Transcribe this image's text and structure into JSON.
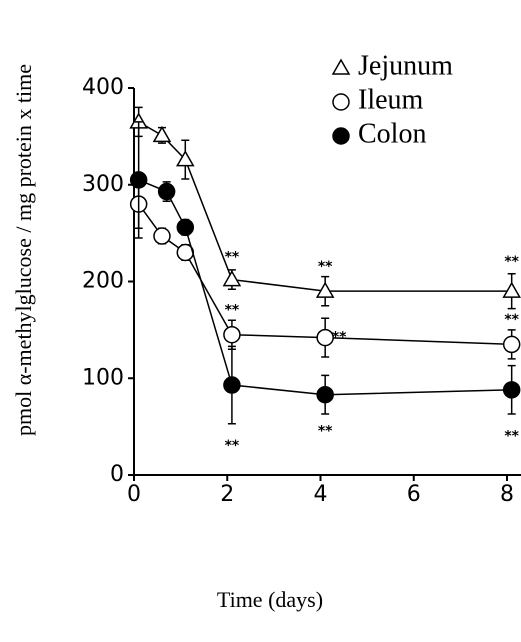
{
  "chart_data": {
    "type": "line",
    "y_label": "pmol α-methylglucose / mg protein x time",
    "x_label": "Time (days)",
    "xlim": [
      0,
      8.3
    ],
    "ylim": [
      0,
      400
    ],
    "xticks": [
      0,
      2,
      4,
      6,
      8
    ],
    "yticks": [
      0,
      100,
      200,
      300,
      400
    ],
    "legend": "top-right",
    "series": [
      {
        "name": "Jejunum",
        "color": "#000000",
        "marker": "triangle",
        "x": [
          0.1,
          0.6,
          1.1,
          2.1,
          4.1,
          8.1
        ],
        "values": [
          365,
          351,
          326,
          202,
          190,
          190
        ],
        "errors": [
          15,
          8,
          20,
          10,
          15,
          18
        ]
      },
      {
        "name": "Ileum",
        "color": "#000000",
        "marker": "circle-open",
        "x": [
          0.1,
          0.6,
          1.1,
          2.1,
          4.1,
          8.1
        ],
        "values": [
          280,
          247,
          230,
          145,
          142,
          135
        ],
        "errors": [
          25,
          8,
          8,
          15,
          20,
          15
        ]
      },
      {
        "name": "Colon",
        "color": "#000000",
        "marker": "circle-filled",
        "x": [
          0.1,
          0.7,
          1.1,
          2.1,
          4.1,
          8.1
        ],
        "values": [
          305,
          293,
          256,
          93,
          83,
          88
        ],
        "errors": [
          60,
          10,
          8,
          40,
          20,
          25
        ]
      }
    ],
    "annotations": [
      {
        "text": "**",
        "x": 2.1,
        "y": 225
      },
      {
        "text": "**",
        "x": 4.1,
        "y": 215
      },
      {
        "text": "**",
        "x": 8.1,
        "y": 220
      },
      {
        "text": "**",
        "x": 2.1,
        "y": 170
      },
      {
        "text": "**",
        "x": 4.4,
        "y": 142
      },
      {
        "text": "**",
        "x": 8.1,
        "y": 160
      },
      {
        "text": "**",
        "x": 2.1,
        "y": 30
      },
      {
        "text": "**",
        "x": 4.1,
        "y": 45
      },
      {
        "text": "**",
        "x": 8.1,
        "y": 40
      }
    ]
  }
}
